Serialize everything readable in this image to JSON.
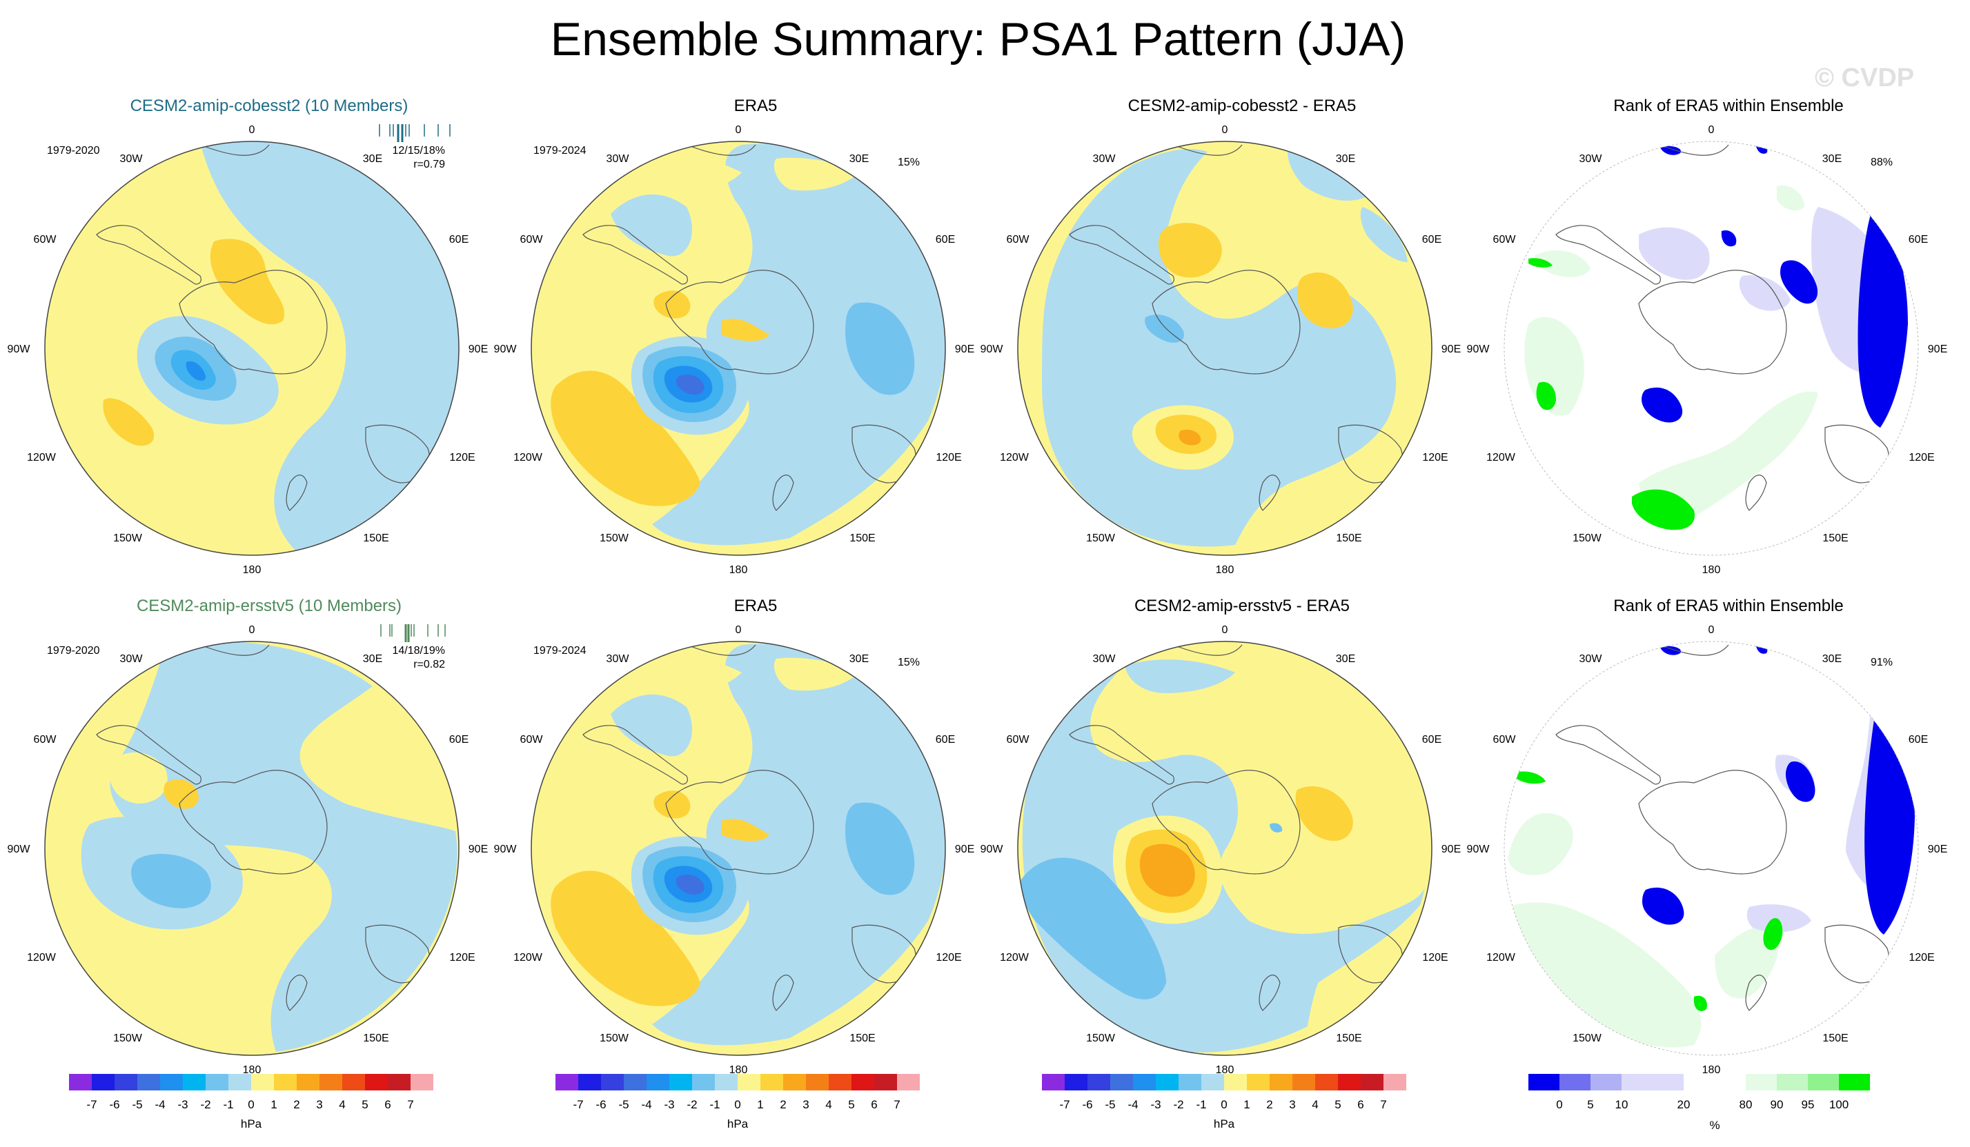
{
  "title": "Ensemble Summary: PSA1 Pattern (JJA)",
  "watermark": "© CVDP",
  "colors": {
    "yellow": "#fcf58f",
    "lightblue": "#b0dcf0",
    "blue1": "#73c3ef",
    "blue2": "#3fb2ef",
    "blue3": "#1f8ff0",
    "blue4": "#3e70e0",
    "orange1": "#fdd33a",
    "orange2": "#f9a71b",
    "rank_blue": "#0000ee",
    "rank_lightgreen": "#e6fbe6",
    "rank_green": "#00ee00"
  },
  "panels": [
    {
      "title": "CESM2-amip-cobesst2 (10 Members)",
      "period": "1979-2020",
      "stats": "12/15/18%",
      "corr": "r=0.79",
      "pct": ""
    },
    {
      "title": "ERA5",
      "period": "1979-2024",
      "stats": "",
      "corr": "",
      "pct": "15%"
    },
    {
      "title": "CESM2-amip-cobesst2 - ERA5",
      "period": "",
      "stats": "",
      "corr": "",
      "pct": ""
    },
    {
      "title": "Rank of ERA5 within Ensemble",
      "period": "",
      "stats": "",
      "corr": "",
      "pct": "88%"
    },
    {
      "title": "CESM2-amip-ersstv5 (10 Members)",
      "period": "1979-2020",
      "stats": "14/18/19%",
      "corr": "r=0.82",
      "pct": ""
    },
    {
      "title": "ERA5",
      "period": "1979-2024",
      "stats": "",
      "corr": "",
      "pct": "15%"
    },
    {
      "title": "CESM2-amip-ersstv5 - ERA5",
      "period": "",
      "stats": "",
      "corr": "",
      "pct": ""
    },
    {
      "title": "Rank of ERA5 within Ensemble",
      "period": "",
      "stats": "",
      "corr": "",
      "pct": "91%"
    }
  ],
  "longitude_labels": {
    "top": "0",
    "bottom": "180",
    "left": "90W",
    "right": "90E",
    "tl30": "30W",
    "tr30": "30E",
    "tl60": "60W",
    "tr60": "60E",
    "bl120": "120W",
    "br120": "120E",
    "bl150": "150W",
    "br150": "150E"
  },
  "chart_data": [
    {
      "type": "colorbar",
      "label": "hPa",
      "ticks": [
        "-7",
        "-6",
        "-5",
        "-4",
        "-3",
        "-2",
        "-1",
        "0",
        "1",
        "2",
        "3",
        "4",
        "5",
        "6",
        "7"
      ],
      "colors": [
        "#8a2be2",
        "#1d1de6",
        "#3440e0",
        "#3e70e0",
        "#1f8ff0",
        "#00b5ef",
        "#73c3ef",
        "#b0dcf0",
        "#fcf58f",
        "#fdd33a",
        "#f9a71b",
        "#f57f17",
        "#ee4b16",
        "#df1616",
        "#c81c24",
        "#f7a8ae"
      ]
    },
    {
      "type": "colorbar",
      "label": "%",
      "ticks": [
        "0",
        "5",
        "10",
        "20",
        "80",
        "90",
        "95",
        "100"
      ],
      "colors": [
        "#0000ee",
        "#6f6ff0",
        "#b0b0f5",
        "#dcdcfa",
        "#ffffff",
        "#e6fbe6",
        "#c3f7c3",
        "#8ff28f",
        "#00ee00"
      ]
    }
  ]
}
